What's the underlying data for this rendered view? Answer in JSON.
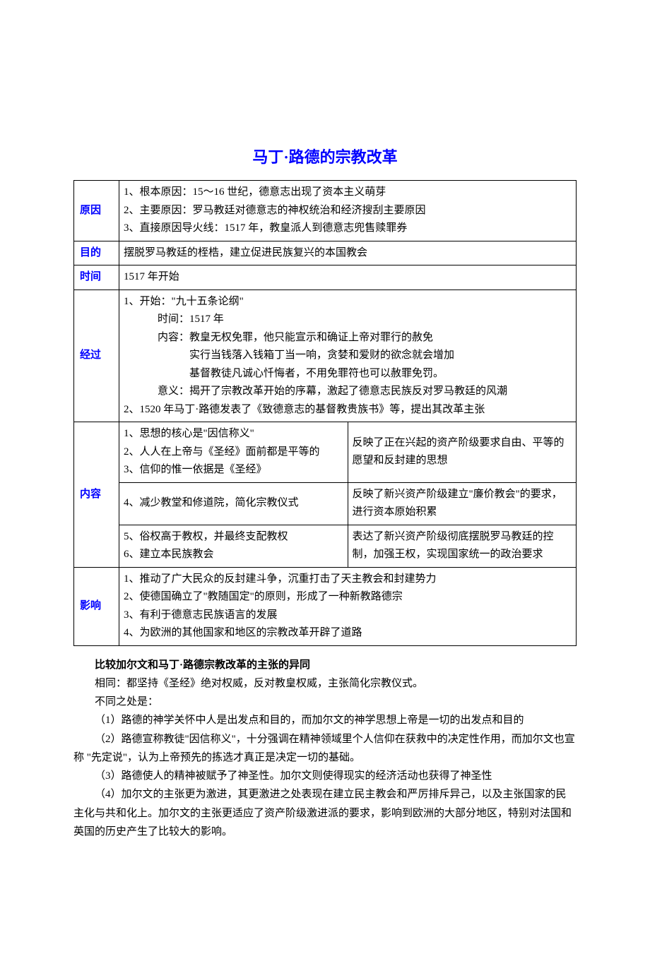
{
  "title": {
    "text": "马丁·路德的宗教改革",
    "color": "#0000ff",
    "fontsize": 22,
    "fontweight": "bold"
  },
  "body": {
    "fontsize": 15,
    "color": "#000000"
  },
  "headerColor": "#0000ff",
  "rows": {
    "cause": {
      "header": "原因",
      "lines": [
        "1、根本原因：15～16 世纪，德意志出现了资本主义萌芽",
        "2、主要原因：罗马教廷对德意志的神权统治和经济搜刮主要原因",
        "3、直接原因导火线：1517 年，教皇派人到德意志兜售赎罪券"
      ]
    },
    "purpose": {
      "header": "目的",
      "line": "摆脱罗马教廷的桎梏，建立促进民族复兴的本国教会"
    },
    "time": {
      "header": "时间",
      "line": "1517 年开始"
    },
    "process": {
      "header": "经过",
      "lines": [
        "1、开始：\"九十五条论纲\"",
        "时间：1517 年",
        "内容：教皇无权免罪，他只能宣示和确证上帝对罪行的赦免",
        "实行当钱落入钱箱丁当一响，贪婪和爱财的欲念就会增加",
        "基督教徒凡诚心忏悔者，不用免罪符也可以赦罪免罚。",
        "意义：揭开了宗教改革开始的序幕，激起了德意志民族反对罗马教廷的风潮",
        "2、1520 年马丁·路德发表了《致德意志的基督教贵族书》等，提出其改革主张"
      ]
    },
    "content": {
      "header": "内容",
      "left1": [
        "1、思想的核心是\"因信称义\"",
        "2、人人在上帝与《圣经》面前都是平等的",
        "3、信仰的惟一依据是《圣经》"
      ],
      "right1": "反映了正在兴起的资产阶级要求自由、平等的愿望和反封建的思想",
      "left2": "4、减少教堂和修道院，简化宗教仪式",
      "right2": "反映了新兴资产阶级建立\"廉价教会\"的要求，进行资本原始积累",
      "left3": [
        "5、俗权高于教权，并最终支配教权",
        "6、建立本民族教会"
      ],
      "right3": "表达了新兴资产阶级彻底摆脱罗马教廷的控制，加强王权，实现国家统一的政治要求"
    },
    "impact": {
      "header": "影响",
      "lines": [
        "1、推动了广大民众的反封建斗争，沉重打击了天主教会和封建势力",
        "2、使德国确立了\"教随国定\"的原则，形成了一种新教路德宗",
        "3、有利于德意志民族语言的发展",
        "4、为欧洲的其他国家和地区的宗教改革开辟了道路"
      ]
    }
  },
  "prose": {
    "heading": "比较加尔文和马丁·路德宗教改革的主张的异同",
    "same": "相同：都坚持《圣经》绝对权威，反对教皇权威，主张简化宗教仪式。",
    "diffIntro": "不同之处是：",
    "diffs": [
      "（1）路德的神学关怀中人是出发点和目的，而加尔文的神学思想上帝是一切的出发点和目的",
      "（2）路德宣称教徒\"因信称义\"，十分强调在精神领域里个人信仰在获救中的决定性作用，而加尔文也宣称 \"先定说\"，认为上帝预先的拣选才真正是决定一切的基础。",
      "（3）路德使人的精神被赋予了神圣性。加尔文则使得现实的经济活动也获得了神圣性",
      "（4）加尔文的主张更为激进，其更激进之处表现在建立民主教会和严厉排斥异己，以及主张国家的民主化与共和化上。加尔文的主张更适应了资产阶级激进派的要求，影响到欧洲的大部分地区，特别对法国和英国的历史产生了比较大的影响。"
    ]
  }
}
